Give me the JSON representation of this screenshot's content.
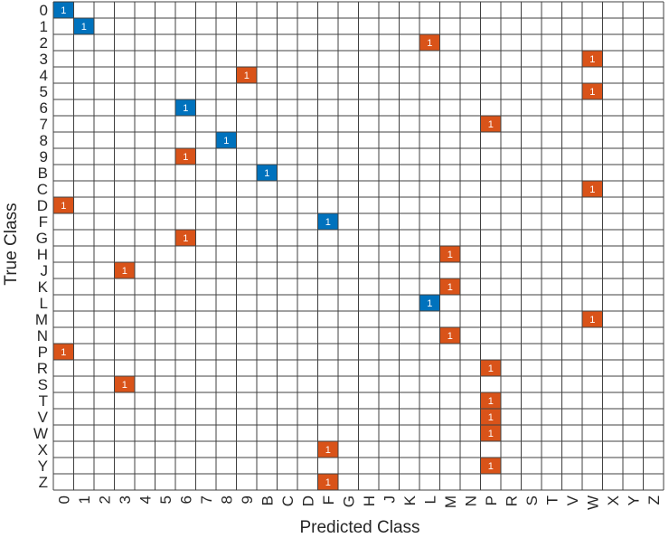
{
  "chart_data": {
    "type": "heatmap",
    "title": "",
    "xlabel": "Predicted Class",
    "ylabel": "True Class",
    "true_classes": [
      "0",
      "1",
      "2",
      "3",
      "4",
      "5",
      "6",
      "7",
      "8",
      "9",
      "B",
      "C",
      "D",
      "F",
      "G",
      "H",
      "J",
      "K",
      "L",
      "M",
      "N",
      "P",
      "R",
      "S",
      "T",
      "V",
      "W",
      "X",
      "Y",
      "Z"
    ],
    "predicted_classes": [
      "0",
      "1",
      "2",
      "3",
      "4",
      "5",
      "6",
      "7",
      "8",
      "9",
      "B",
      "C",
      "D",
      "F",
      "G",
      "H",
      "J",
      "K",
      "L",
      "M",
      "N",
      "P",
      "R",
      "S",
      "T",
      "V",
      "W",
      "X",
      "Y",
      "Z"
    ],
    "colors": {
      "correct": "#0072BD",
      "incorrect": "#D95319",
      "grid": "#404040"
    },
    "cells": [
      {
        "true": "0",
        "pred": "0",
        "value": 1
      },
      {
        "true": "1",
        "pred": "1",
        "value": 1
      },
      {
        "true": "2",
        "pred": "L",
        "value": 1
      },
      {
        "true": "3",
        "pred": "W",
        "value": 1
      },
      {
        "true": "4",
        "pred": "9",
        "value": 1
      },
      {
        "true": "5",
        "pred": "W",
        "value": 1
      },
      {
        "true": "6",
        "pred": "6",
        "value": 1
      },
      {
        "true": "7",
        "pred": "P",
        "value": 1
      },
      {
        "true": "8",
        "pred": "8",
        "value": 1
      },
      {
        "true": "9",
        "pred": "6",
        "value": 1
      },
      {
        "true": "B",
        "pred": "B",
        "value": 1
      },
      {
        "true": "C",
        "pred": "W",
        "value": 1
      },
      {
        "true": "D",
        "pred": "0",
        "value": 1
      },
      {
        "true": "F",
        "pred": "F",
        "value": 1
      },
      {
        "true": "G",
        "pred": "6",
        "value": 1
      },
      {
        "true": "H",
        "pred": "M",
        "value": 1
      },
      {
        "true": "J",
        "pred": "3",
        "value": 1
      },
      {
        "true": "K",
        "pred": "M",
        "value": 1
      },
      {
        "true": "L",
        "pred": "L",
        "value": 1
      },
      {
        "true": "M",
        "pred": "W",
        "value": 1
      },
      {
        "true": "N",
        "pred": "M",
        "value": 1
      },
      {
        "true": "P",
        "pred": "0",
        "value": 1
      },
      {
        "true": "R",
        "pred": "P",
        "value": 1
      },
      {
        "true": "S",
        "pred": "3",
        "value": 1
      },
      {
        "true": "T",
        "pred": "P",
        "value": 1
      },
      {
        "true": "V",
        "pred": "P",
        "value": 1
      },
      {
        "true": "W",
        "pred": "P",
        "value": 1
      },
      {
        "true": "X",
        "pred": "F",
        "value": 1
      },
      {
        "true": "Y",
        "pred": "P",
        "value": 1
      },
      {
        "true": "Z",
        "pred": "F",
        "value": 1
      }
    ]
  }
}
